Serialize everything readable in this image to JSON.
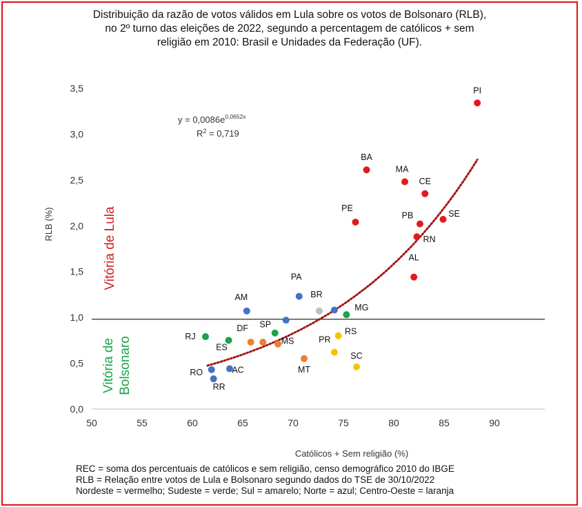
{
  "title_lines": [
    "Distribuição da razão de votos válidos em Lula sobre os votos de Bolsonaro (RLB),",
    "no 2º turno das eleições de 2022, segundo a percentagem de católicos + sem",
    "religião em 2010: Brasil e Unidades da Federação (UF)."
  ],
  "notes": [
    "REC = soma dos percentuais de católicos e sem religião, censo demográfico 2010 do IBGE",
    "RLB = Relação entre votos de Lula e Bolsonaro segundo dados do TSE de 30/10/2022",
    "Nordeste = vermelho; Sudeste = verde; Sul = amarelo; Norte = azul; Centro-Oeste = laranja"
  ],
  "region_labels": {
    "lula": "Vitória de Lula",
    "bolsonaro_line1": "Vitória de",
    "bolsonaro_line2": "Bolsonaro"
  },
  "equation": {
    "line1_prefix": "y = 0,0086e",
    "line1_exponent": "0,0652x",
    "line2_prefix": "R",
    "line2_sup": "2",
    "line2_suffix": " = 0,719"
  },
  "colors": {
    "border": "#e01010",
    "nordeste": "#e31a1c",
    "sudeste": "#1aa34a",
    "sul": "#f5c400",
    "norte": "#4472c4",
    "centro_oeste": "#ed7d31",
    "brasil": "#bfbfbf",
    "trend": "#a01818",
    "lula_text": "#d42020",
    "bolsonaro_text": "#1aa34a"
  },
  "chart_data": {
    "type": "scatter",
    "xlabel": "Católicos + Sem religião (%)",
    "ylabel": "RLB (%)",
    "xlim": [
      50,
      95
    ],
    "ylim": [
      0,
      3.5
    ],
    "x_ticks": [
      50,
      55,
      60,
      65,
      70,
      75,
      80,
      85,
      90
    ],
    "y_ticks": [
      "0,0",
      "0,5",
      "1,0",
      "1,5",
      "2,0",
      "2,5",
      "3,0",
      "3,5"
    ],
    "y_tick_values": [
      0,
      0.5,
      1.0,
      1.5,
      2.0,
      2.5,
      3.0,
      3.5
    ],
    "reference_line_y": 0.98,
    "grid": false,
    "trendline": {
      "type": "exponential",
      "a": 0.0086,
      "b": 0.0652,
      "x_from": 61.5,
      "x_to": 88.3
    },
    "points": [
      {
        "label": "PI",
        "x": 88.3,
        "y": 3.34,
        "region": "nordeste"
      },
      {
        "label": "BA",
        "x": 77.3,
        "y": 2.61,
        "region": "nordeste"
      },
      {
        "label": "MA",
        "x": 81.1,
        "y": 2.48,
        "region": "nordeste"
      },
      {
        "label": "CE",
        "x": 83.1,
        "y": 2.35,
        "region": "nordeste"
      },
      {
        "label": "PE",
        "x": 76.2,
        "y": 2.04,
        "region": "nordeste"
      },
      {
        "label": "PB",
        "x": 82.6,
        "y": 2.02,
        "region": "nordeste"
      },
      {
        "label": "SE",
        "x": 84.9,
        "y": 2.07,
        "region": "nordeste"
      },
      {
        "label": "RN",
        "x": 82.3,
        "y": 1.88,
        "region": "nordeste"
      },
      {
        "label": "AL",
        "x": 82.0,
        "y": 1.44,
        "region": "nordeste"
      },
      {
        "label": "PA",
        "x": 70.6,
        "y": 1.23,
        "region": "norte"
      },
      {
        "label": "AM",
        "x": 65.4,
        "y": 1.07,
        "region": "norte"
      },
      {
        "label": "BR",
        "x": 72.6,
        "y": 1.07,
        "region": "brasil"
      },
      {
        "label": "MG",
        "x": 75.3,
        "y": 1.03,
        "region": "sudeste"
      },
      {
        "label": "",
        "x": 74.1,
        "y": 1.08,
        "region": "norte"
      },
      {
        "label": "",
        "x": 69.3,
        "y": 0.97,
        "region": "norte"
      },
      {
        "label": "SP",
        "x": 68.2,
        "y": 0.83,
        "region": "sudeste"
      },
      {
        "label": "RJ",
        "x": 61.3,
        "y": 0.79,
        "region": "sudeste"
      },
      {
        "label": "ES",
        "x": 63.6,
        "y": 0.75,
        "region": "sudeste"
      },
      {
        "label": "DF",
        "x": 65.8,
        "y": 0.73,
        "region": "centro_oeste"
      },
      {
        "label": "",
        "x": 67.0,
        "y": 0.73,
        "region": "centro_oeste"
      },
      {
        "label": "MS",
        "x": 68.5,
        "y": 0.71,
        "region": "centro_oeste"
      },
      {
        "label": "RS",
        "x": 74.5,
        "y": 0.8,
        "region": "sul"
      },
      {
        "label": "PR",
        "x": 74.1,
        "y": 0.62,
        "region": "sul"
      },
      {
        "label": "SC",
        "x": 76.3,
        "y": 0.46,
        "region": "sul"
      },
      {
        "label": "MT",
        "x": 71.1,
        "y": 0.55,
        "region": "centro_oeste"
      },
      {
        "label": "RO",
        "x": 61.9,
        "y": 0.43,
        "region": "norte"
      },
      {
        "label": "AC",
        "x": 63.7,
        "y": 0.44,
        "region": "norte"
      },
      {
        "label": "RR",
        "x": 62.1,
        "y": 0.33,
        "region": "norte"
      }
    ]
  }
}
